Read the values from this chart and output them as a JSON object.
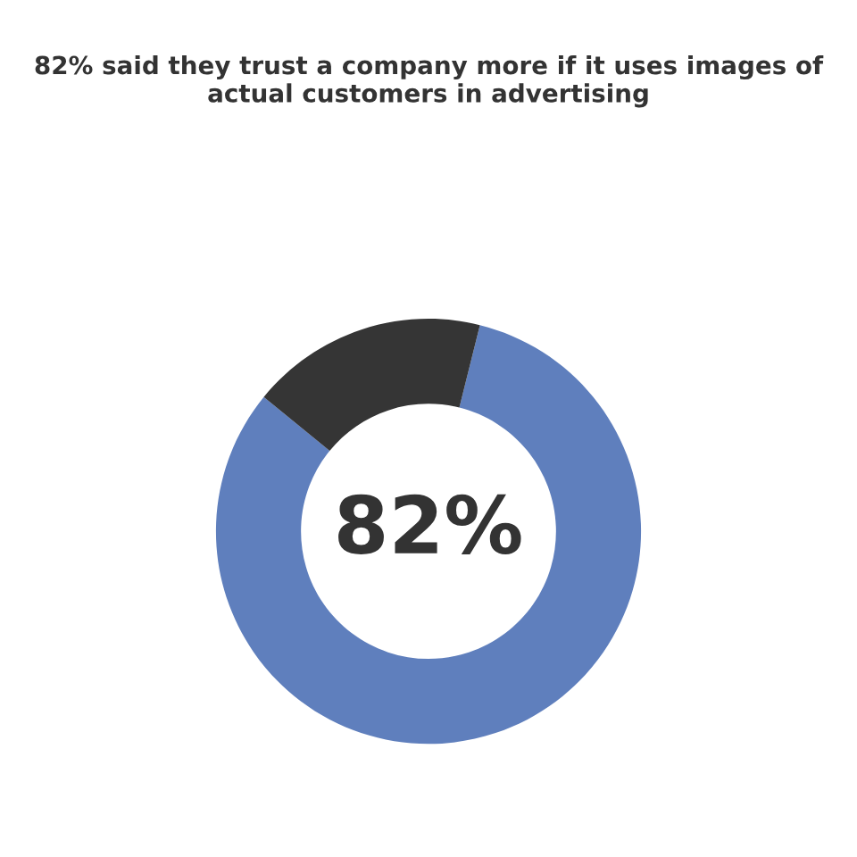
{
  "chart_data": {
    "type": "donut",
    "title": "82% said they trust a company more if it uses images of actual customers in advertising",
    "categories": [
      null,
      null
    ],
    "values": [
      82,
      18
    ],
    "colors": [
      "#5f7fbd",
      "#353535"
    ],
    "value_labels": [
      "82%",
      null
    ]
  }
}
